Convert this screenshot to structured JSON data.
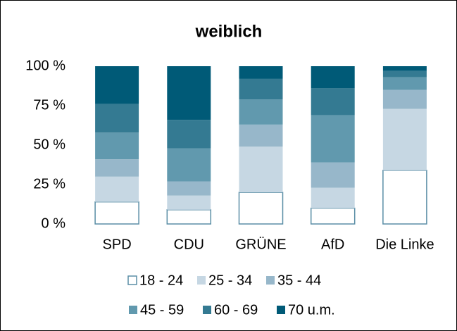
{
  "chart_data": {
    "type": "stacked_bar",
    "title": "weiblich",
    "categories": [
      "SPD",
      "CDU",
      "GRÜNE",
      "AfD",
      "Die Linke"
    ],
    "series": [
      {
        "name": "18 - 24",
        "color": "#ffffff",
        "values": [
          14,
          9,
          20,
          10,
          34
        ]
      },
      {
        "name": "25 - 34",
        "color": "#c6d7e3",
        "values": [
          16,
          9,
          29,
          13,
          39
        ]
      },
      {
        "name": "35 - 44",
        "color": "#97b7ca",
        "values": [
          11,
          9,
          14,
          16,
          12
        ]
      },
      {
        "name": "45 - 59",
        "color": "#6199ae",
        "values": [
          17,
          21,
          16,
          30,
          8
        ]
      },
      {
        "name": "60 - 69",
        "color": "#347a92",
        "values": [
          18,
          18,
          13,
          17,
          4
        ]
      },
      {
        "name": "70 u.m.",
        "color": "#005a77",
        "values": [
          24,
          34,
          8,
          14,
          3
        ]
      }
    ],
    "ylim": [
      0,
      100
    ],
    "yticks": [
      {
        "value": 0,
        "label": "0 %"
      },
      {
        "value": 25,
        "label": "25 %"
      },
      {
        "value": 50,
        "label": "50 %"
      },
      {
        "value": 75,
        "label": "75 %"
      },
      {
        "value": 100,
        "label": "100 %"
      }
    ],
    "grid": false,
    "legend": "bottom"
  }
}
